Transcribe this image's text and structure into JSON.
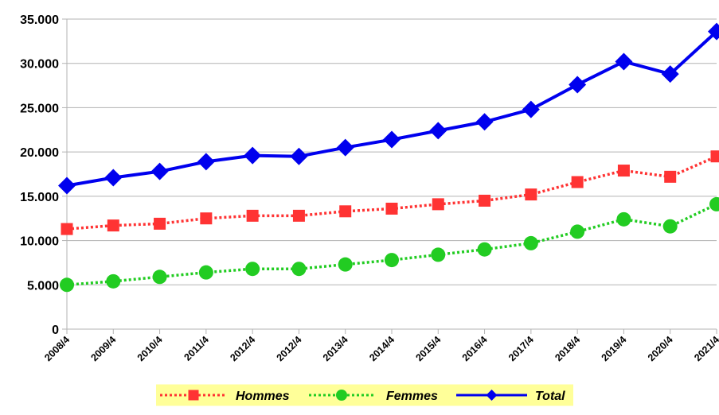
{
  "chart_data": {
    "type": "line",
    "categories": [
      "2008/4",
      "2009/4",
      "2010/4",
      "2011/4",
      "2012/4",
      "2012/4",
      "2013/4",
      "2014/4",
      "2015/4",
      "2016/4",
      "2017/4",
      "2018/4",
      "2019/4",
      "2020/4",
      "2021/4"
    ],
    "ylim": [
      0,
      35000
    ],
    "yticks": [
      0,
      5000,
      10000,
      15000,
      20000,
      25000,
      30000,
      35000
    ],
    "ytick_labels": [
      "0",
      "5.000",
      "10.000",
      "15.000",
      "20.000",
      "25.000",
      "30.000",
      "35.000"
    ],
    "grid": "horizontal",
    "legend_position": "bottom",
    "series": [
      {
        "name": "Hommes",
        "color": "#ff3333",
        "line_style": "dotted",
        "marker": "square",
        "values": [
          11300,
          11700,
          11900,
          12500,
          12800,
          12800,
          13300,
          13600,
          14100,
          14500,
          15200,
          16600,
          17900,
          17200,
          19500
        ]
      },
      {
        "name": "Femmes",
        "color": "#22cc22",
        "line_style": "dotted",
        "marker": "circle",
        "values": [
          5000,
          5400,
          5900,
          6400,
          6800,
          6800,
          7300,
          7800,
          8400,
          9000,
          9700,
          11000,
          12400,
          11600,
          14100
        ]
      },
      {
        "name": "Total",
        "color": "#0000ee",
        "line_style": "solid",
        "marker": "diamond",
        "values": [
          16200,
          17100,
          17800,
          18900,
          19600,
          19500,
          20500,
          21400,
          22400,
          23400,
          24800,
          27600,
          30200,
          28800,
          33600
        ]
      }
    ],
    "legend_background": "#ffff99"
  }
}
